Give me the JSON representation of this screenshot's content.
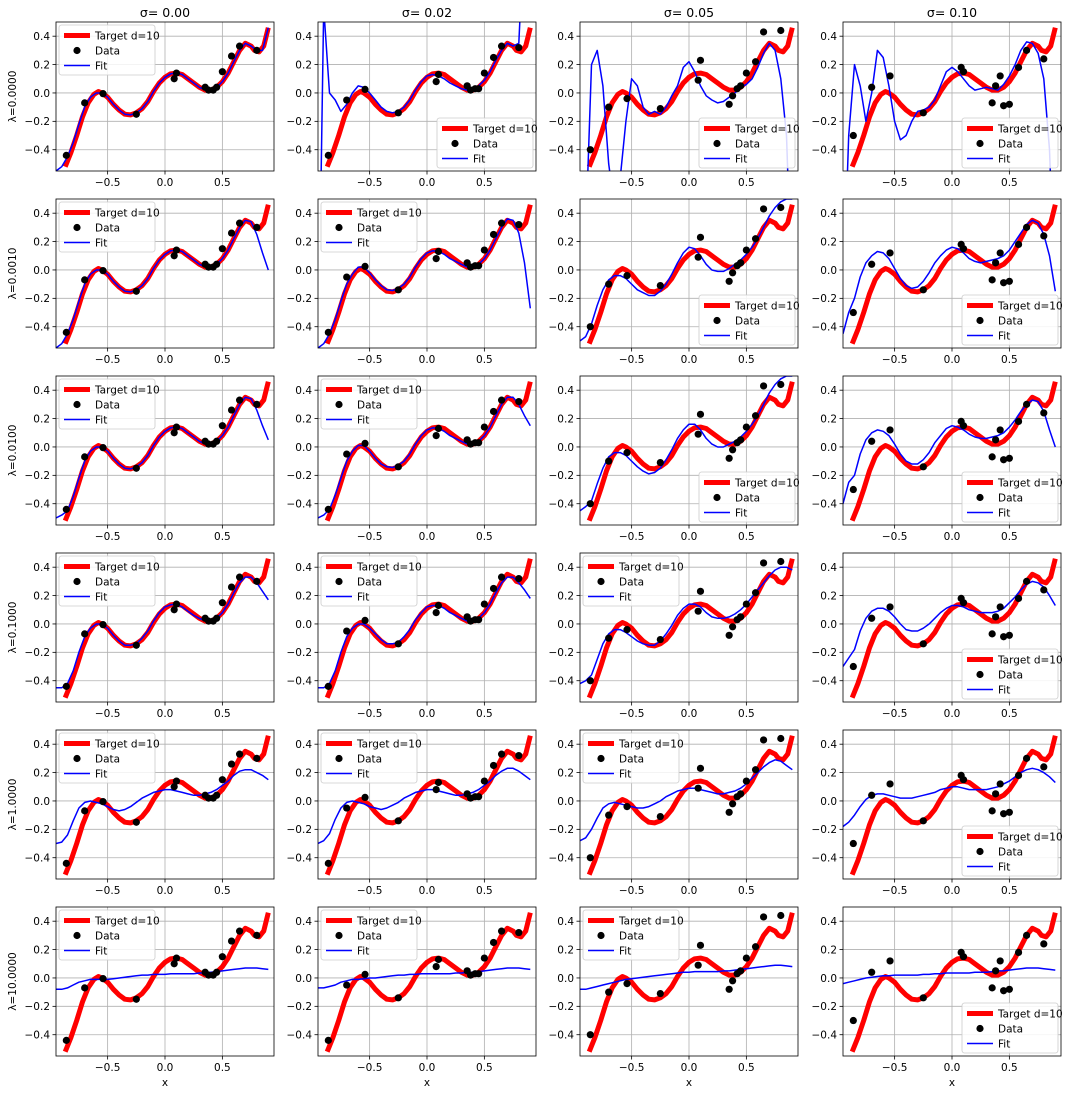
{
  "chart_data": {
    "type": "line",
    "layout": "grid",
    "row_labels": [
      "λ=0.0000",
      "λ=0.0010",
      "λ=0.0100",
      "λ=0.1000",
      "λ=1.0000",
      "λ=10.0000"
    ],
    "column_titles": [
      "σ=  0.00",
      "σ=  0.02",
      "σ=  0.05",
      "σ=  0.10"
    ],
    "xlabel": "x",
    "x_ticks": [
      "−0.5",
      "0.0",
      "0.5"
    ],
    "y_ticks": [
      "−0.4",
      "−0.2",
      "0.0",
      "0.2",
      "0.4"
    ],
    "xlim": [
      -0.95,
      0.95
    ],
    "ylim": [
      -0.55,
      0.5
    ],
    "grid": true,
    "legend_entries": [
      "Target d=10",
      "Data",
      "Fit"
    ],
    "colors": {
      "target": "#ff0000",
      "data": "#000000",
      "fit": "#0000ff"
    },
    "target_curve": {
      "name": "Target d=10",
      "x": [
        -0.87,
        -0.82,
        -0.77,
        -0.72,
        -0.67,
        -0.62,
        -0.58,
        -0.55,
        -0.5,
        -0.45,
        -0.4,
        -0.35,
        -0.3,
        -0.25,
        -0.2,
        -0.15,
        -0.1,
        -0.05,
        0.0,
        0.05,
        0.1,
        0.15,
        0.2,
        0.25,
        0.3,
        0.35,
        0.4,
        0.45,
        0.5,
        0.55,
        0.6,
        0.65,
        0.7,
        0.75,
        0.78,
        0.82,
        0.86,
        0.9
      ],
      "y": [
        -0.52,
        -0.42,
        -0.3,
        -0.17,
        -0.07,
        -0.01,
        0.01,
        0.0,
        -0.03,
        -0.08,
        -0.12,
        -0.15,
        -0.155,
        -0.14,
        -0.11,
        -0.06,
        0.01,
        0.07,
        0.11,
        0.135,
        0.14,
        0.13,
        0.1,
        0.07,
        0.04,
        0.02,
        0.02,
        0.04,
        0.08,
        0.14,
        0.22,
        0.3,
        0.35,
        0.33,
        0.3,
        0.29,
        0.33,
        0.46
      ]
    },
    "data_x": [
      -0.86,
      -0.7,
      -0.54,
      -0.25,
      0.08,
      0.1,
      0.35,
      0.38,
      0.42,
      0.45,
      0.5,
      0.58,
      0.65,
      0.8
    ],
    "data_y": {
      "sigma_0.00": [
        -0.44,
        -0.07,
        -0.005,
        -0.15,
        0.1,
        0.14,
        0.04,
        0.02,
        0.02,
        0.04,
        0.15,
        0.26,
        0.33,
        0.3
      ],
      "sigma_0.02": [
        -0.44,
        -0.05,
        0.025,
        -0.14,
        0.08,
        0.13,
        0.05,
        0.02,
        0.03,
        0.03,
        0.14,
        0.25,
        0.33,
        0.32
      ],
      "sigma_0.05": [
        -0.4,
        -0.1,
        -0.04,
        -0.11,
        0.09,
        0.23,
        -0.08,
        -0.02,
        0.03,
        0.05,
        0.14,
        0.22,
        0.43,
        0.44
      ],
      "sigma_0.10": [
        -0.3,
        0.04,
        0.12,
        -0.14,
        0.18,
        0.15,
        -0.07,
        0.05,
        0.12,
        -0.09,
        -0.08,
        0.18,
        0.3,
        0.24
      ]
    },
    "fit_x": [
      -0.95,
      -0.9,
      -0.85,
      -0.8,
      -0.75,
      -0.7,
      -0.65,
      -0.6,
      -0.55,
      -0.5,
      -0.45,
      -0.4,
      -0.35,
      -0.3,
      -0.25,
      -0.2,
      -0.15,
      -0.1,
      -0.05,
      0.0,
      0.05,
      0.1,
      0.15,
      0.2,
      0.25,
      0.3,
      0.35,
      0.4,
      0.45,
      0.5,
      0.55,
      0.6,
      0.65,
      0.7,
      0.75,
      0.8,
      0.85,
      0.9
    ],
    "fits": [
      [
        [
          -0.55,
          -0.52,
          -0.45,
          -0.35,
          -0.22,
          -0.1,
          -0.03,
          0.0,
          0.0,
          -0.03,
          -0.08,
          -0.12,
          -0.15,
          -0.155,
          -0.14,
          -0.11,
          -0.06,
          0.01,
          0.07,
          0.11,
          0.135,
          0.14,
          0.13,
          0.1,
          0.07,
          0.04,
          0.02,
          0.02,
          0.04,
          0.08,
          0.14,
          0.22,
          0.3,
          0.35,
          0.33,
          0.3,
          0.3,
          0.46
        ],
        [
          -2.0,
          0.6,
          0.0,
          -0.05,
          -0.13,
          -0.08,
          0.0,
          0.05,
          0.04,
          0.0,
          -0.05,
          -0.1,
          -0.13,
          -0.14,
          -0.13,
          -0.1,
          -0.05,
          0.02,
          0.08,
          0.12,
          0.13,
          0.12,
          0.1,
          0.07,
          0.05,
          0.03,
          0.02,
          0.03,
          0.05,
          0.09,
          0.15,
          0.23,
          0.3,
          0.35,
          0.33,
          0.35,
          1.2,
          3.0
        ],
        [
          -3.0,
          -1.0,
          0.2,
          0.3,
          0.05,
          -0.5,
          -0.8,
          -0.6,
          -0.2,
          0.1,
          0.05,
          -0.1,
          -0.15,
          -0.13,
          -0.15,
          -0.1,
          -0.02,
          0.05,
          0.18,
          0.22,
          0.15,
          0.05,
          -0.02,
          -0.05,
          -0.07,
          -0.06,
          -0.03,
          0.0,
          0.04,
          0.06,
          0.1,
          0.18,
          0.28,
          0.35,
          0.3,
          0.1,
          -0.3,
          -1.5
        ],
        [
          -1.5,
          -0.3,
          0.2,
          0.05,
          -0.2,
          0.0,
          0.3,
          0.25,
          0.05,
          -0.2,
          -0.33,
          -0.3,
          -0.2,
          -0.13,
          -0.12,
          -0.1,
          -0.05,
          0.05,
          0.15,
          0.18,
          0.15,
          0.1,
          0.05,
          0.02,
          0.03,
          0.04,
          0.03,
          0.02,
          0.06,
          0.12,
          0.2,
          0.3,
          0.36,
          0.35,
          0.28,
          0.1,
          -0.4,
          -1.5
        ]
      ],
      [
        [
          -0.55,
          -0.52,
          -0.45,
          -0.35,
          -0.22,
          -0.1,
          -0.03,
          0.0,
          0.0,
          -0.03,
          -0.08,
          -0.12,
          -0.15,
          -0.155,
          -0.14,
          -0.11,
          -0.06,
          0.01,
          0.07,
          0.11,
          0.135,
          0.14,
          0.13,
          0.1,
          0.07,
          0.04,
          0.02,
          0.02,
          0.04,
          0.08,
          0.14,
          0.22,
          0.3,
          0.35,
          0.34,
          0.25,
          0.12,
          0.0
        ],
        [
          -0.55,
          -0.52,
          -0.45,
          -0.35,
          -0.22,
          -0.1,
          -0.03,
          0.02,
          0.02,
          -0.02,
          -0.07,
          -0.11,
          -0.14,
          -0.145,
          -0.13,
          -0.1,
          -0.05,
          0.02,
          0.08,
          0.12,
          0.135,
          0.13,
          0.11,
          0.08,
          0.06,
          0.04,
          0.02,
          0.02,
          0.04,
          0.08,
          0.14,
          0.22,
          0.3,
          0.36,
          0.35,
          0.26,
          0.05,
          -0.27
        ],
        [
          -0.5,
          -0.47,
          -0.38,
          -0.25,
          -0.14,
          -0.07,
          -0.04,
          -0.04,
          -0.06,
          -0.1,
          -0.14,
          -0.16,
          -0.18,
          -0.18,
          -0.15,
          -0.1,
          -0.03,
          0.05,
          0.12,
          0.16,
          0.15,
          0.1,
          0.04,
          0.0,
          -0.01,
          -0.01,
          0.01,
          0.04,
          0.07,
          0.11,
          0.16,
          0.22,
          0.3,
          0.38,
          0.44,
          0.48,
          0.5,
          0.5
        ],
        [
          -0.45,
          -0.3,
          -0.2,
          -0.05,
          0.05,
          0.1,
          0.13,
          0.12,
          0.08,
          0.01,
          -0.06,
          -0.11,
          -0.13,
          -0.12,
          -0.08,
          -0.02,
          0.05,
          0.1,
          0.14,
          0.16,
          0.15,
          0.12,
          0.08,
          0.06,
          0.05,
          0.06,
          0.07,
          0.08,
          0.1,
          0.14,
          0.2,
          0.26,
          0.32,
          0.35,
          0.33,
          0.25,
          0.1,
          -0.15
        ]
      ],
      [
        [
          -0.5,
          -0.48,
          -0.45,
          -0.35,
          -0.22,
          -0.1,
          -0.03,
          0.0,
          0.0,
          -0.03,
          -0.08,
          -0.12,
          -0.15,
          -0.155,
          -0.14,
          -0.11,
          -0.06,
          0.01,
          0.07,
          0.11,
          0.135,
          0.14,
          0.13,
          0.1,
          0.07,
          0.04,
          0.02,
          0.02,
          0.04,
          0.08,
          0.14,
          0.22,
          0.3,
          0.35,
          0.34,
          0.26,
          0.15,
          0.05
        ],
        [
          -0.5,
          -0.48,
          -0.44,
          -0.34,
          -0.22,
          -0.1,
          -0.03,
          0.01,
          0.01,
          -0.03,
          -0.08,
          -0.12,
          -0.14,
          -0.145,
          -0.13,
          -0.1,
          -0.05,
          0.02,
          0.08,
          0.12,
          0.135,
          0.13,
          0.11,
          0.08,
          0.06,
          0.04,
          0.02,
          0.02,
          0.04,
          0.08,
          0.14,
          0.22,
          0.3,
          0.35,
          0.35,
          0.3,
          0.22,
          0.15
        ],
        [
          -0.45,
          -0.42,
          -0.38,
          -0.26,
          -0.15,
          -0.07,
          -0.04,
          -0.04,
          -0.06,
          -0.1,
          -0.14,
          -0.17,
          -0.19,
          -0.18,
          -0.15,
          -0.09,
          -0.02,
          0.06,
          0.12,
          0.16,
          0.16,
          0.12,
          0.06,
          0.02,
          0.0,
          0.0,
          0.02,
          0.04,
          0.07,
          0.11,
          0.16,
          0.22,
          0.3,
          0.38,
          0.44,
          0.48,
          0.5,
          0.5
        ],
        [
          -0.4,
          -0.25,
          -0.2,
          -0.05,
          0.05,
          0.1,
          0.12,
          0.11,
          0.08,
          0.02,
          -0.05,
          -0.1,
          -0.12,
          -0.12,
          -0.09,
          -0.04,
          0.03,
          0.08,
          0.13,
          0.15,
          0.14,
          0.12,
          0.09,
          0.07,
          0.06,
          0.06,
          0.07,
          0.08,
          0.1,
          0.14,
          0.19,
          0.25,
          0.3,
          0.33,
          0.32,
          0.25,
          0.12,
          0.0
        ]
      ],
      [
        [
          -0.45,
          -0.45,
          -0.42,
          -0.33,
          -0.2,
          -0.09,
          -0.03,
          0.0,
          0.0,
          -0.03,
          -0.08,
          -0.12,
          -0.15,
          -0.15,
          -0.14,
          -0.1,
          -0.05,
          0.02,
          0.08,
          0.12,
          0.135,
          0.14,
          0.12,
          0.09,
          0.06,
          0.04,
          0.02,
          0.02,
          0.04,
          0.08,
          0.14,
          0.22,
          0.29,
          0.33,
          0.33,
          0.29,
          0.23,
          0.17
        ],
        [
          -0.45,
          -0.45,
          -0.42,
          -0.33,
          -0.2,
          -0.09,
          -0.03,
          0.0,
          0.0,
          -0.03,
          -0.07,
          -0.11,
          -0.14,
          -0.14,
          -0.13,
          -0.09,
          -0.04,
          0.03,
          0.08,
          0.12,
          0.13,
          0.13,
          0.11,
          0.08,
          0.06,
          0.04,
          0.02,
          0.02,
          0.04,
          0.08,
          0.14,
          0.22,
          0.29,
          0.33,
          0.33,
          0.29,
          0.24,
          0.18
        ],
        [
          -0.42,
          -0.4,
          -0.36,
          -0.25,
          -0.14,
          -0.07,
          -0.04,
          -0.04,
          -0.06,
          -0.09,
          -0.12,
          -0.14,
          -0.15,
          -0.15,
          -0.12,
          -0.07,
          -0.01,
          0.06,
          0.11,
          0.14,
          0.14,
          0.12,
          0.08,
          0.05,
          0.04,
          0.04,
          0.05,
          0.07,
          0.1,
          0.14,
          0.19,
          0.24,
          0.29,
          0.34,
          0.38,
          0.4,
          0.4,
          0.38
        ],
        [
          -0.3,
          -0.24,
          -0.18,
          -0.05,
          0.04,
          0.09,
          0.11,
          0.11,
          0.09,
          0.05,
          0.0,
          -0.04,
          -0.05,
          -0.05,
          -0.03,
          0.0,
          0.04,
          0.08,
          0.11,
          0.13,
          0.13,
          0.12,
          0.1,
          0.09,
          0.08,
          0.08,
          0.08,
          0.09,
          0.11,
          0.15,
          0.19,
          0.24,
          0.28,
          0.3,
          0.29,
          0.26,
          0.2,
          0.13
        ]
      ],
      [
        [
          -0.3,
          -0.29,
          -0.24,
          -0.14,
          -0.05,
          -0.01,
          0.0,
          -0.01,
          -0.02,
          -0.04,
          -0.06,
          -0.07,
          -0.06,
          -0.04,
          -0.01,
          0.02,
          0.04,
          0.06,
          0.07,
          0.08,
          0.08,
          0.07,
          0.06,
          0.05,
          0.04,
          0.04,
          0.05,
          0.06,
          0.08,
          0.11,
          0.14,
          0.18,
          0.21,
          0.22,
          0.22,
          0.2,
          0.18,
          0.15
        ],
        [
          -0.3,
          -0.28,
          -0.23,
          -0.13,
          -0.05,
          -0.01,
          0.0,
          -0.01,
          -0.02,
          -0.04,
          -0.05,
          -0.06,
          -0.05,
          -0.03,
          -0.01,
          0.02,
          0.04,
          0.06,
          0.07,
          0.08,
          0.08,
          0.07,
          0.06,
          0.05,
          0.04,
          0.04,
          0.05,
          0.06,
          0.08,
          0.11,
          0.14,
          0.18,
          0.21,
          0.23,
          0.23,
          0.21,
          0.18,
          0.15
        ],
        [
          -0.28,
          -0.26,
          -0.2,
          -0.12,
          -0.05,
          -0.02,
          -0.01,
          -0.02,
          -0.03,
          -0.04,
          -0.05,
          -0.05,
          -0.04,
          -0.02,
          0.0,
          0.03,
          0.05,
          0.07,
          0.08,
          0.09,
          0.09,
          0.08,
          0.07,
          0.06,
          0.05,
          0.05,
          0.06,
          0.07,
          0.09,
          0.12,
          0.16,
          0.2,
          0.24,
          0.27,
          0.29,
          0.28,
          0.25,
          0.22
        ],
        [
          -0.18,
          -0.15,
          -0.1,
          -0.04,
          0.01,
          0.04,
          0.05,
          0.05,
          0.04,
          0.03,
          0.02,
          0.02,
          0.02,
          0.03,
          0.04,
          0.05,
          0.06,
          0.08,
          0.09,
          0.1,
          0.1,
          0.09,
          0.08,
          0.08,
          0.08,
          0.08,
          0.09,
          0.1,
          0.12,
          0.14,
          0.17,
          0.2,
          0.22,
          0.23,
          0.22,
          0.2,
          0.17,
          0.13
        ]
      ],
      [
        [
          -0.08,
          -0.08,
          -0.07,
          -0.05,
          -0.03,
          -0.02,
          -0.01,
          -0.01,
          -0.01,
          -0.01,
          -0.005,
          0.0,
          0.005,
          0.01,
          0.015,
          0.02,
          0.02,
          0.025,
          0.025,
          0.025,
          0.03,
          0.03,
          0.03,
          0.03,
          0.03,
          0.035,
          0.035,
          0.04,
          0.045,
          0.05,
          0.055,
          0.06,
          0.065,
          0.07,
          0.07,
          0.07,
          0.065,
          0.06
        ],
        [
          -0.07,
          -0.07,
          -0.06,
          -0.05,
          -0.03,
          -0.02,
          -0.01,
          -0.01,
          -0.005,
          0.0,
          0.0,
          0.005,
          0.01,
          0.015,
          0.02,
          0.02,
          0.025,
          0.025,
          0.03,
          0.03,
          0.03,
          0.03,
          0.03,
          0.03,
          0.035,
          0.035,
          0.04,
          0.04,
          0.045,
          0.05,
          0.055,
          0.06,
          0.065,
          0.07,
          0.07,
          0.07,
          0.065,
          0.06
        ],
        [
          -0.08,
          -0.08,
          -0.07,
          -0.06,
          -0.05,
          -0.04,
          -0.03,
          -0.02,
          -0.01,
          -0.005,
          0.0,
          0.005,
          0.01,
          0.015,
          0.02,
          0.025,
          0.03,
          0.035,
          0.04,
          0.04,
          0.045,
          0.045,
          0.045,
          0.045,
          0.045,
          0.05,
          0.05,
          0.055,
          0.06,
          0.065,
          0.07,
          0.075,
          0.08,
          0.085,
          0.09,
          0.09,
          0.085,
          0.08
        ],
        [
          -0.04,
          -0.03,
          -0.02,
          -0.01,
          0.0,
          0.005,
          0.01,
          0.015,
          0.015,
          0.02,
          0.02,
          0.02,
          0.02,
          0.02,
          0.025,
          0.025,
          0.03,
          0.03,
          0.035,
          0.035,
          0.035,
          0.035,
          0.035,
          0.04,
          0.04,
          0.04,
          0.045,
          0.05,
          0.05,
          0.055,
          0.06,
          0.065,
          0.07,
          0.07,
          0.07,
          0.065,
          0.06,
          0.055
        ]
      ]
    ],
    "legend_position": [
      [
        "upper left",
        "lower right",
        "lower right",
        "lower right"
      ],
      [
        "upper left",
        "upper left",
        "lower right",
        "lower right"
      ],
      [
        "upper left",
        "upper left",
        "lower right",
        "lower right"
      ],
      [
        "upper left",
        "upper left",
        "upper left",
        "lower right"
      ],
      [
        "upper left",
        "upper left",
        "upper left",
        "lower right"
      ],
      [
        "upper left",
        "upper left",
        "upper left",
        "lower right"
      ]
    ]
  }
}
